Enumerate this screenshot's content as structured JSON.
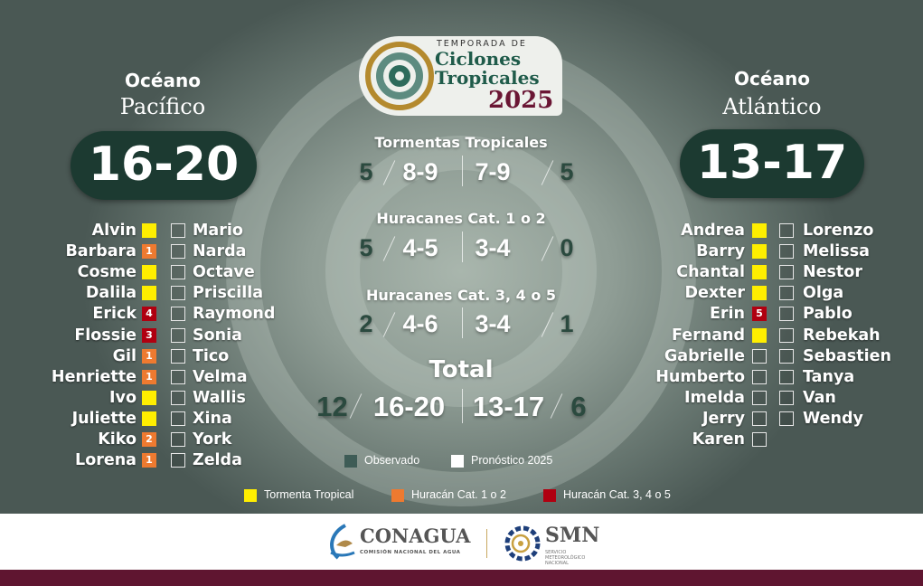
{
  "logo": {
    "line1": "TEMPORADA DE",
    "line2": "Ciclones",
    "line3": "Tropicales",
    "year": "2025"
  },
  "pacific": {
    "label1": "Océano",
    "label2": "Pacífico",
    "forecast": "16-20",
    "col1": [
      {
        "name": "Alvin",
        "status": "tt",
        "cat": ""
      },
      {
        "name": "Barbara",
        "status": "h12",
        "cat": "1"
      },
      {
        "name": "Cosme",
        "status": "tt",
        "cat": ""
      },
      {
        "name": "Dalila",
        "status": "tt",
        "cat": ""
      },
      {
        "name": "Erick",
        "status": "h345",
        "cat": "4"
      },
      {
        "name": "Flossie",
        "status": "h345",
        "cat": "3"
      },
      {
        "name": "Gil",
        "status": "h12",
        "cat": "1"
      },
      {
        "name": "Henriette",
        "status": "h12",
        "cat": "1"
      },
      {
        "name": "Ivo",
        "status": "tt",
        "cat": ""
      },
      {
        "name": "Juliette",
        "status": "tt",
        "cat": ""
      },
      {
        "name": "Kiko",
        "status": "h12",
        "cat": "2"
      },
      {
        "name": "Lorena",
        "status": "h12",
        "cat": "1"
      }
    ],
    "col2": [
      "Mario",
      "Narda",
      "Octave",
      "Priscilla",
      "Raymond",
      "Sonia",
      "Tico",
      "Velma",
      "Wallis",
      "Xina",
      "York",
      "Zelda"
    ]
  },
  "atlantic": {
    "label1": "Océano",
    "label2": "Atlántico",
    "forecast": "13-17",
    "col1": [
      {
        "name": "Andrea",
        "status": "tt",
        "cat": ""
      },
      {
        "name": "Barry",
        "status": "tt",
        "cat": ""
      },
      {
        "name": "Chantal",
        "status": "tt",
        "cat": ""
      },
      {
        "name": "Dexter",
        "status": "tt",
        "cat": ""
      },
      {
        "name": "Erin",
        "status": "h345",
        "cat": "5"
      },
      {
        "name": "Fernand",
        "status": "tt",
        "cat": ""
      },
      {
        "name": "Gabrielle",
        "status": "none",
        "cat": ""
      },
      {
        "name": "Humberto",
        "status": "none",
        "cat": ""
      },
      {
        "name": "Imelda",
        "status": "none",
        "cat": ""
      },
      {
        "name": "Jerry",
        "status": "none",
        "cat": ""
      },
      {
        "name": "Karen",
        "status": "none",
        "cat": ""
      }
    ],
    "col2": [
      "Lorenzo",
      "Melissa",
      "Nestor",
      "Olga",
      "Pablo",
      "Rebekah",
      "Sebastien",
      "Tanya",
      "Van",
      "Wendy"
    ]
  },
  "stats": [
    {
      "title": "Tormentas Tropicales",
      "pac_obs": "5",
      "pac_fc": "8-9",
      "atl_fc": "7-9",
      "atl_obs": "5"
    },
    {
      "title": "Huracanes Cat. 1 o 2",
      "pac_obs": "5",
      "pac_fc": "4-5",
      "atl_fc": "3-4",
      "atl_obs": "0"
    },
    {
      "title": "Huracanes Cat. 3, 4 o 5",
      "pac_obs": "2",
      "pac_fc": "4-6",
      "atl_fc": "3-4",
      "atl_obs": "1"
    },
    {
      "title": "Total",
      "pac_obs": "12",
      "pac_fc": "16-20",
      "atl_fc": "13-17",
      "atl_obs": "6"
    }
  ],
  "legend": {
    "observed": "Observado",
    "forecast": "Pronóstico 2025",
    "tt": "Tormenta Tropical",
    "h12": "Huracán Cat. 1 o 2",
    "h345": "Huracán Cat. 3, 4 o 5"
  },
  "colors": {
    "tt": "#ffee00",
    "h12": "#ee7a30",
    "h345": "#b00010",
    "observed": "#3e5c56",
    "pill": "#1c3a31",
    "footer_bar": "#5f1530"
  },
  "footer": {
    "conagua": "CONAGUA",
    "conagua_sub": "COMISIÓN NACIONAL DEL AGUA",
    "smn": "SMN",
    "smn_sub": "SERVICIO METEOROLÓGICO NACIONAL"
  }
}
